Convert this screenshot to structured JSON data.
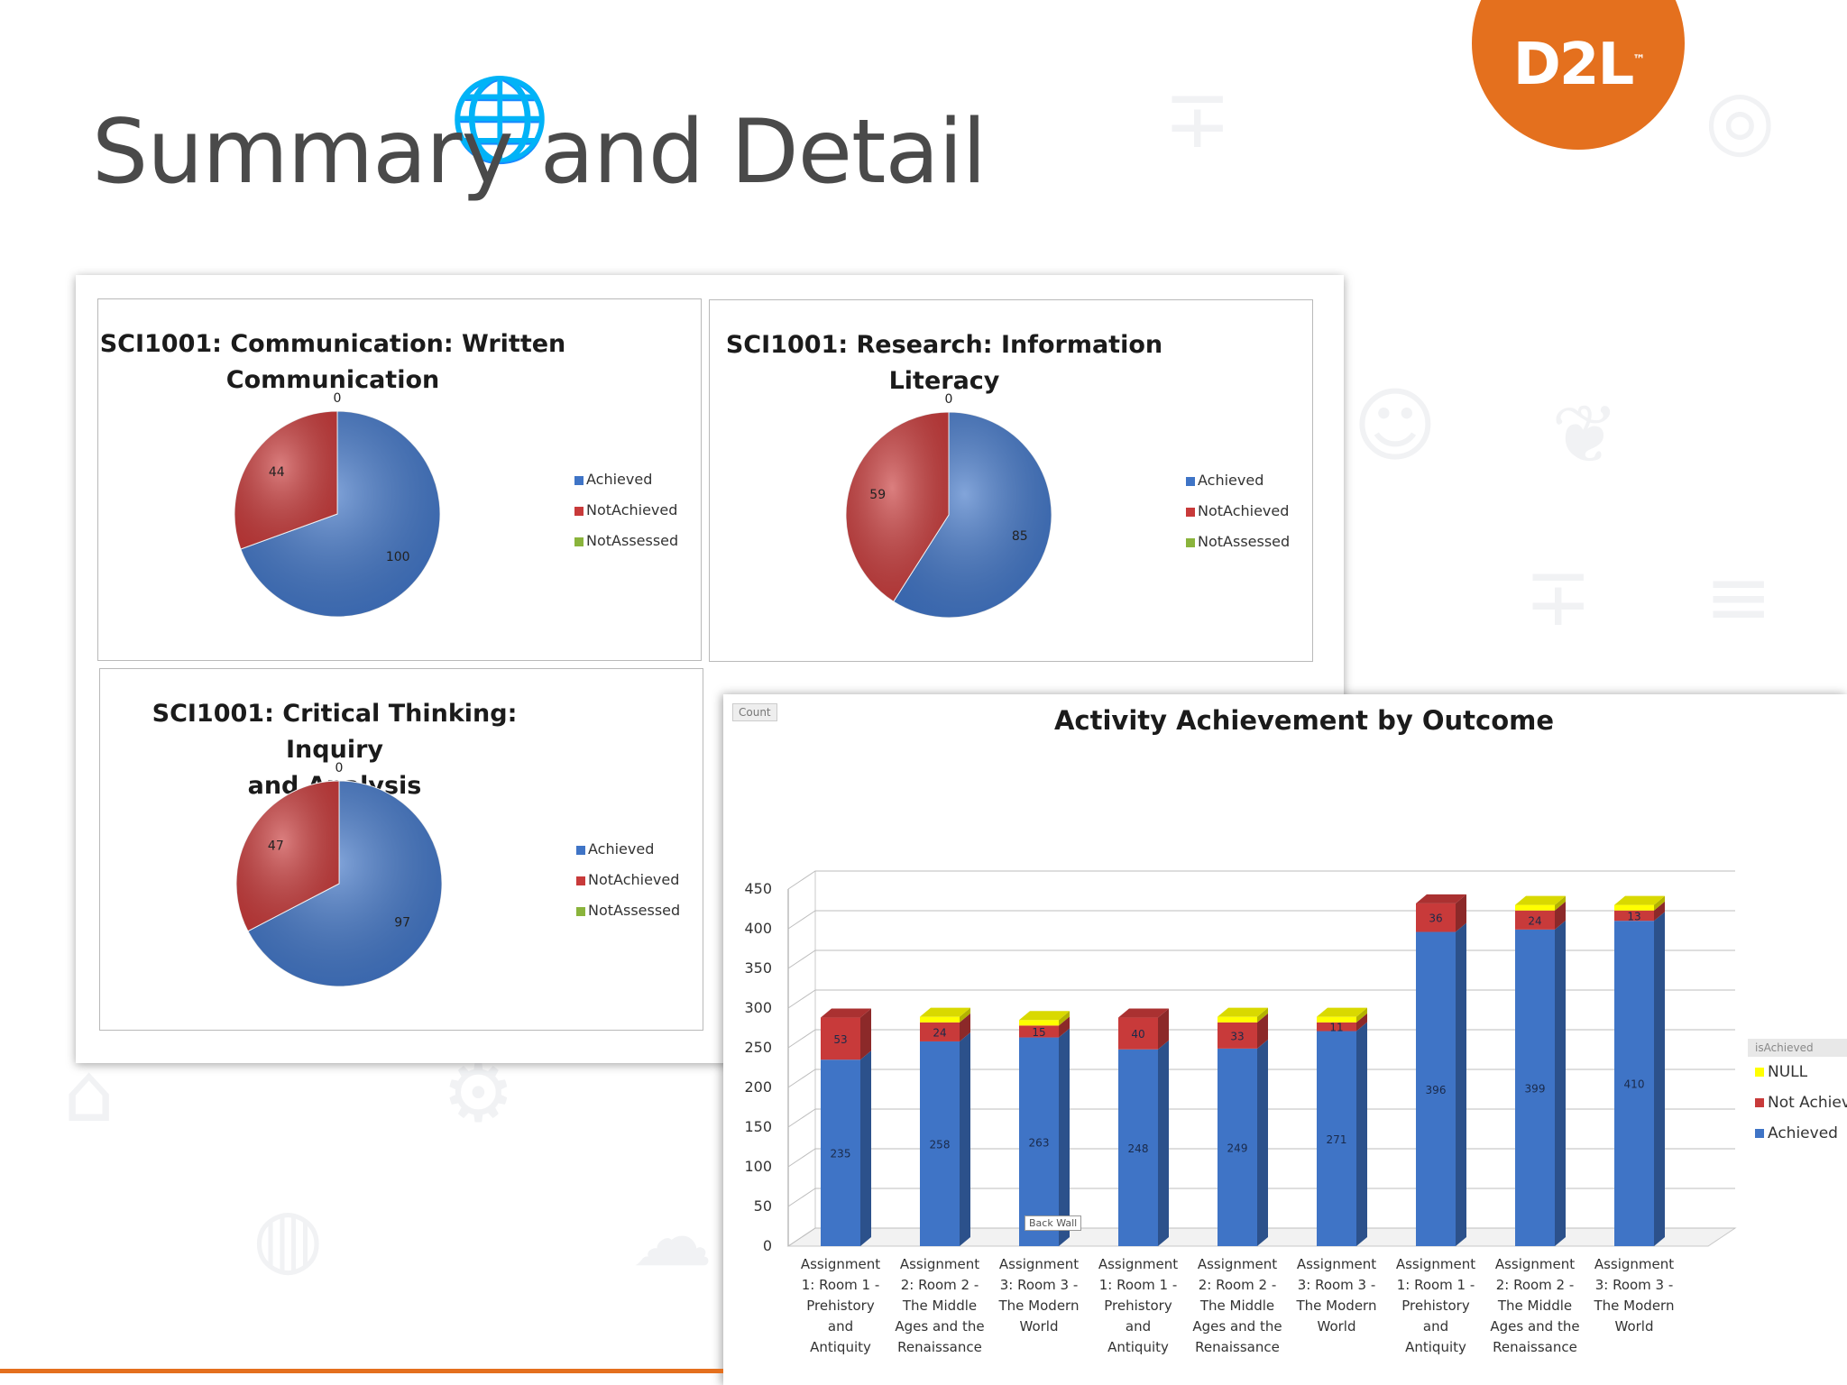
{
  "slide": {
    "title": "Summary and Detail",
    "logo_text": "D2L",
    "logo_mark": "™",
    "accent_color": "#e4701e"
  },
  "colors": {
    "achieved": "#3f74c6",
    "not_achieved": "#c83a3a",
    "not_assessed": "#8ab43c",
    "null": "#ffff00"
  },
  "chart_data": [
    {
      "type": "pie",
      "title": "SCI1001: Communication: Written Communication",
      "title_lines": [
        "SCI1001: Communication: Written",
        "Communication"
      ],
      "legend": [
        "Achieved",
        "NotAchieved",
        "NotAssessed"
      ],
      "slices": [
        {
          "label": "Achieved",
          "value": 100
        },
        {
          "label": "NotAchieved",
          "value": 44
        },
        {
          "label": "NotAssessed",
          "value": 0
        }
      ]
    },
    {
      "type": "pie",
      "title": "SCI1001: Research: Information Literacy",
      "title_lines": [
        "SCI1001: Research: Information",
        "Literacy"
      ],
      "legend": [
        "Achieved",
        "NotAchieved",
        "NotAssessed"
      ],
      "slices": [
        {
          "label": "Achieved",
          "value": 85
        },
        {
          "label": "NotAchieved",
          "value": 59
        },
        {
          "label": "NotAssessed",
          "value": 0
        }
      ]
    },
    {
      "type": "pie",
      "title": "SCI1001: Critical Thinking: Inquiry and Analysis",
      "title_lines": [
        "SCI1001: Critical Thinking: Inquiry",
        "and Analysis"
      ],
      "legend": [
        "Achieved",
        "NotAchieved",
        "NotAssessed"
      ],
      "slices": [
        {
          "label": "Achieved",
          "value": 97
        },
        {
          "label": "NotAchieved",
          "value": 47
        },
        {
          "label": "NotAssessed",
          "value": 0
        }
      ]
    },
    {
      "type": "bar",
      "stacked": true,
      "title": "Activity Achievement by Outcome",
      "ylabel": "Count",
      "ylim": [
        0,
        450
      ],
      "yticks": [
        0,
        50,
        100,
        150,
        200,
        250,
        300,
        350,
        400,
        450
      ],
      "grid": true,
      "legend_title": "isAchieved",
      "legend_position": "right",
      "legend": [
        "NULL",
        "Not Achiev",
        "Achieved"
      ],
      "back_wall_label": "Back Wall",
      "categories": [
        [
          "Assignment",
          "1: Room 1 -",
          "Prehistory",
          "and",
          "Antiquity"
        ],
        [
          "Assignment",
          "2: Room 2 -",
          "The Middle",
          "Ages and the",
          "Renaissance"
        ],
        [
          "Assignment",
          "3: Room 3 -",
          "The Modern",
          "World"
        ],
        [
          "Assignment",
          "1: Room 1 -",
          "Prehistory",
          "and",
          "Antiquity"
        ],
        [
          "Assignment",
          "2: Room 2 -",
          "The Middle",
          "Ages and the",
          "Renaissance"
        ],
        [
          "Assignment",
          "3: Room 3 -",
          "The Modern",
          "World"
        ],
        [
          "Assignment",
          "1: Room 1 -",
          "Prehistory",
          "and",
          "Antiquity"
        ],
        [
          "Assignment",
          "2: Room 2 -",
          "The Middle",
          "Ages and the",
          "Renaissance"
        ],
        [
          "Assignment",
          "3: Room 3 -",
          "The Modern",
          "World"
        ]
      ],
      "series": [
        {
          "name": "Achieved",
          "values": [
            235,
            258,
            263,
            248,
            249,
            271,
            396,
            399,
            410
          ]
        },
        {
          "name": "Not Achiev",
          "values": [
            53,
            24,
            15,
            40,
            33,
            11,
            36,
            24,
            13
          ]
        },
        {
          "name": "NULL",
          "values": [
            0,
            7,
            7,
            0,
            7,
            7,
            0,
            7,
            7
          ]
        }
      ],
      "data_labels": {
        "Achieved": [
          "235",
          "258",
          "263",
          "248",
          "249",
          "271",
          "396",
          "399",
          "410"
        ],
        "Not Achiev": [
          "53",
          "24",
          "15",
          "40",
          "33",
          "11",
          "36",
          "24",
          "13"
        ]
      }
    }
  ]
}
